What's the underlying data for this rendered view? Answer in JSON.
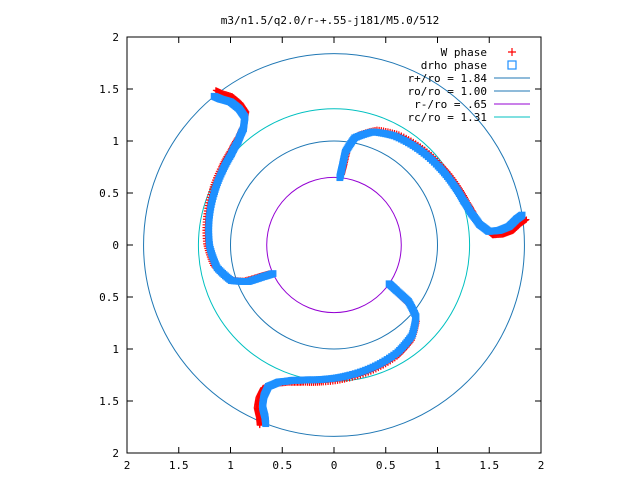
{
  "chart_data": {
    "type": "scatter",
    "title": "m3/n1.5/q2.0/r-+.55-j181/M5.0/512",
    "xlabel": "",
    "ylabel": "",
    "xlim": [
      -2,
      2
    ],
    "ylim": [
      -2,
      2
    ],
    "x_ticks": [
      -2,
      -1.5,
      -1,
      -0.5,
      0,
      0.5,
      1,
      1.5,
      2
    ],
    "y_ticks": [
      -2,
      -1.5,
      -1,
      -0.5,
      0,
      0.5,
      1,
      1.5,
      2
    ],
    "x_tick_labels": [
      "2",
      "1.5",
      "1",
      "0.5",
      "0",
      "0.5",
      "1",
      "1.5",
      "2"
    ],
    "y_tick_labels": [
      "2",
      "1.5",
      "1",
      "0.5",
      "0",
      "0.5",
      "1",
      "1.5",
      "2"
    ],
    "grid": false,
    "legend_position": "top-right",
    "circles": [
      {
        "label": "r+/ro = 1.84",
        "radius": 1.84,
        "color": "#1f77b4"
      },
      {
        "label": "ro/ro = 1.00",
        "radius": 1.0,
        "color": "#1f77b4"
      },
      {
        "label": "r-/ro =  .65",
        "radius": 0.65,
        "color": "#9400d3"
      },
      {
        "label": "rc/ro = 1.31",
        "radius": 1.31,
        "color": "#00c0c0"
      }
    ],
    "spiral_arms": {
      "count": 3,
      "angles_deg": [
        85,
        205,
        325
      ],
      "description_points": [
        {
          "r": 0.65,
          "dtheta": 0
        },
        {
          "r": 0.75,
          "dtheta": 1
        },
        {
          "r": 0.9,
          "dtheta": 2
        },
        {
          "r": 1.05,
          "dtheta": 6
        },
        {
          "r": 1.15,
          "dtheta": 14
        },
        {
          "r": 1.2,
          "dtheta": 24
        },
        {
          "r": 1.23,
          "dtheta": 36
        },
        {
          "r": 1.26,
          "dtheta": 48
        },
        {
          "r": 1.29,
          "dtheta": 58
        },
        {
          "r": 1.32,
          "dtheta": 66
        },
        {
          "r": 1.36,
          "dtheta": 72
        },
        {
          "r": 1.42,
          "dtheta": 77
        },
        {
          "r": 1.5,
          "dtheta": 80
        },
        {
          "r": 1.6,
          "dtheta": 80
        },
        {
          "r": 1.7,
          "dtheta": 79
        },
        {
          "r": 1.78,
          "dtheta": 77
        },
        {
          "r": 1.84,
          "dtheta": 76
        }
      ]
    },
    "series": [
      {
        "name": "W phase",
        "marker": "plus",
        "color": "#ff0000"
      },
      {
        "name": "drho phase",
        "marker": "square",
        "color": "#1e90ff"
      }
    ]
  }
}
